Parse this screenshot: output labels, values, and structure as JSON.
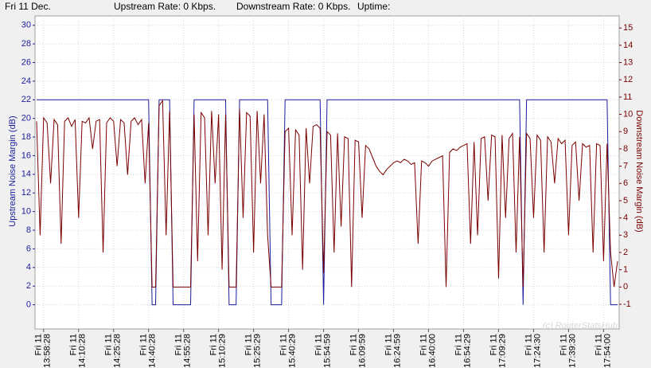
{
  "header": {
    "date": "Fri 11 Dec.",
    "upstream_rate": "Upstream Rate: 0 Kbps.",
    "downstream_rate": "Downstream Rate: 0 Kbps.",
    "uptime": "Uptime:"
  },
  "chart_data": {
    "type": "line",
    "ylabel": "Upstream Noise Margin (dB)",
    "y2label": "Downstream Noise Margin (dB)",
    "annotation": "(c) RouterStatsHub",
    "category_date": "Fri 11",
    "categories": [
      null,
      null,
      "13:58:28",
      null,
      null,
      null,
      null,
      null,
      null,
      null,
      null,
      null,
      "14:10:28",
      null,
      null,
      null,
      null,
      null,
      null,
      null,
      null,
      null,
      "14:25:28",
      null,
      null,
      null,
      null,
      null,
      null,
      null,
      null,
      null,
      "14:40:28",
      null,
      null,
      null,
      null,
      null,
      null,
      null,
      null,
      null,
      "14:55:28",
      null,
      null,
      null,
      null,
      null,
      null,
      null,
      null,
      null,
      "15:10:29",
      null,
      null,
      null,
      null,
      null,
      null,
      null,
      null,
      null,
      "15:25:29",
      null,
      null,
      null,
      null,
      null,
      null,
      null,
      null,
      null,
      "15:40:29",
      null,
      null,
      null,
      null,
      null,
      null,
      null,
      null,
      null,
      "15:54:59",
      null,
      null,
      null,
      null,
      null,
      null,
      null,
      null,
      null,
      "16:09:59",
      null,
      null,
      null,
      null,
      null,
      null,
      null,
      null,
      null,
      "16:24:59",
      null,
      null,
      null,
      null,
      null,
      null,
      null,
      null,
      null,
      "16:40:00",
      null,
      null,
      null,
      null,
      null,
      null,
      null,
      null,
      null,
      "16:54:29",
      null,
      null,
      null,
      null,
      null,
      null,
      null,
      null,
      null,
      "17:09:29",
      null,
      null,
      null,
      null,
      null,
      null,
      null,
      null,
      null,
      "17:24:30",
      null,
      null,
      null,
      null,
      null,
      null,
      null,
      null,
      null,
      "17:39:30",
      null,
      null,
      null,
      null,
      null,
      null,
      null,
      null,
      null,
      "17:54:00",
      null,
      null,
      null,
      null
    ],
    "series": [
      {
        "name": "Upstream Noise Margin",
        "color": "#1c1c9c",
        "axis": "y",
        "values": [
          22,
          22,
          22,
          22,
          22,
          22,
          22,
          22,
          22,
          22,
          22,
          22,
          22,
          22,
          22,
          22,
          22,
          22,
          22,
          22,
          22,
          22,
          22,
          22,
          22,
          22,
          22,
          22,
          22,
          22,
          22,
          22,
          22,
          0,
          0,
          22,
          22,
          22,
          22,
          0,
          0,
          0,
          0,
          0,
          0,
          22,
          22,
          22,
          22,
          22,
          22,
          22,
          22,
          22,
          22,
          0,
          0,
          0,
          22,
          22,
          22,
          22,
          22,
          22,
          22,
          22,
          22,
          0,
          0,
          0,
          0,
          22,
          22,
          22,
          22,
          22,
          22,
          22,
          22,
          22,
          22,
          22,
          0,
          22,
          22,
          22,
          22,
          22,
          22,
          22,
          22,
          22,
          22,
          22,
          22,
          22,
          22,
          22,
          22,
          22,
          22,
          22,
          22,
          22,
          22,
          22,
          22,
          22,
          22,
          22,
          22,
          22,
          22,
          22,
          22,
          22,
          22,
          22,
          22,
          22,
          22,
          22,
          22,
          22,
          22,
          22,
          22,
          22,
          22,
          22,
          22,
          22,
          22,
          22,
          22,
          22,
          22,
          22,
          22,
          0,
          22,
          22,
          22,
          22,
          22,
          22,
          22,
          22,
          22,
          22,
          22,
          22,
          22,
          22,
          22,
          22,
          22,
          22,
          22,
          22,
          22,
          22,
          22,
          22,
          0,
          0,
          0
        ]
      },
      {
        "name": "Downstream Noise Margin",
        "color": "#7a0000",
        "axis": "y2",
        "values": [
          9.6,
          3,
          9.8,
          9.5,
          6,
          9.7,
          9.4,
          2.5,
          9.6,
          9.8,
          9.3,
          9.7,
          4,
          9.6,
          9.5,
          9.8,
          8,
          9.6,
          9.7,
          2,
          9.5,
          9.8,
          9.6,
          7,
          9.7,
          9.5,
          6.5,
          9.6,
          9.8,
          9.4,
          9.7,
          6,
          9.5,
          0,
          0,
          10.5,
          10.8,
          3,
          10.2,
          0,
          0,
          0,
          0,
          0,
          0,
          10,
          1.5,
          10.1,
          9.8,
          3,
          10.2,
          6,
          10,
          1,
          10,
          0,
          0,
          0,
          10.3,
          4,
          10.1,
          9.9,
          2,
          10.2,
          6,
          10,
          3,
          0,
          0,
          0,
          0,
          9,
          9.2,
          3,
          9.1,
          8.8,
          1,
          9.2,
          6,
          9.3,
          9.4,
          9.2,
          0.8,
          9,
          8.8,
          2,
          8.9,
          3.5,
          8.7,
          8.6,
          0,
          8.5,
          8.4,
          4,
          8.2,
          8,
          7.5,
          7,
          6.7,
          6.5,
          6.8,
          7,
          7.2,
          7.3,
          7.2,
          7.4,
          7.3,
          7.1,
          7.2,
          2.5,
          7.3,
          7.2,
          7,
          7.3,
          7.4,
          7.5,
          7.6,
          0,
          7.8,
          8,
          7.9,
          8.1,
          8.2,
          8.3,
          2.5,
          8.4,
          3,
          8.6,
          8.7,
          5,
          8.8,
          8.7,
          0.5,
          8.8,
          4,
          8.6,
          8.9,
          2,
          8.7,
          0,
          8.9,
          8.6,
          4,
          8.8,
          8.5,
          2,
          8.7,
          8.4,
          6,
          8.6,
          8.3,
          8.5,
          3,
          8.2,
          8.4,
          5,
          8.3,
          8.1,
          8.2,
          2,
          8.3,
          8.2,
          1.5,
          8.3,
          2,
          0,
          1.5
        ]
      }
    ],
    "ylim": [
      -2.6,
      31
    ],
    "yticks": [
      0,
      2,
      4,
      6,
      8,
      10,
      12,
      14,
      16,
      18,
      20,
      22,
      24,
      26,
      28,
      30
    ],
    "y2lim": [
      -2.43,
      15.7
    ],
    "y2ticks": [
      -1,
      0,
      1,
      2,
      3,
      4,
      5,
      6,
      7,
      8,
      9,
      10,
      11,
      12,
      13,
      14,
      15
    ],
    "grid": true
  }
}
